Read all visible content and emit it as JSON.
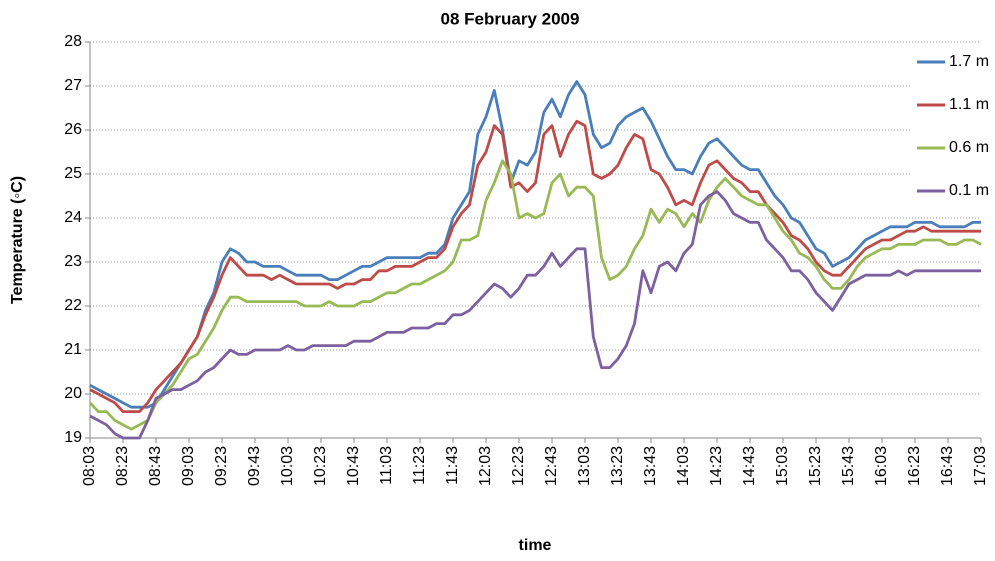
{
  "chart_data": {
    "type": "line",
    "title": "08 February 2009",
    "x_label": "time",
    "y_label": "Temperature (◦C)",
    "categories": [
      "08:03",
      null,
      null,
      null,
      "08:23",
      null,
      null,
      null,
      "08:43",
      null,
      null,
      null,
      "09:03",
      null,
      null,
      null,
      "09:23",
      null,
      null,
      null,
      "09:43",
      null,
      null,
      null,
      "10:03",
      null,
      null,
      null,
      "10:23",
      null,
      null,
      null,
      "10:43",
      null,
      null,
      null,
      "11:03",
      null,
      null,
      null,
      "11:23",
      null,
      null,
      null,
      "11:43",
      null,
      null,
      null,
      "12:03",
      null,
      null,
      null,
      "12:23",
      null,
      null,
      null,
      "12:43",
      null,
      null,
      null,
      "13:03",
      null,
      null,
      null,
      "13:23",
      null,
      null,
      null,
      "13:43",
      null,
      null,
      null,
      "14:03",
      null,
      null,
      null,
      "14:23",
      null,
      null,
      null,
      "14:43",
      null,
      null,
      null,
      "15:03",
      null,
      null,
      null,
      "15:23",
      null,
      null,
      null,
      "15:43",
      null,
      null,
      null,
      "16:03",
      null,
      null,
      null,
      "16:23",
      null,
      null,
      null,
      "16:43",
      null,
      null,
      null,
      "17:03"
    ],
    "series": [
      {
        "name": "1.7 m",
        "color": "#4a7ebb",
        "values": [
          20.2,
          20.1,
          20.0,
          19.9,
          19.8,
          19.7,
          19.7,
          19.7,
          19.8,
          20.1,
          20.4,
          20.7,
          21.0,
          21.3,
          21.9,
          22.3,
          23.0,
          23.3,
          23.2,
          23.0,
          23.0,
          22.9,
          22.9,
          22.9,
          22.8,
          22.7,
          22.7,
          22.7,
          22.7,
          22.6,
          22.6,
          22.7,
          22.8,
          22.9,
          22.9,
          23.0,
          23.1,
          23.1,
          23.1,
          23.1,
          23.1,
          23.2,
          23.2,
          23.4,
          24.0,
          24.3,
          24.6,
          25.9,
          26.3,
          26.9,
          26.0,
          24.8,
          25.3,
          25.2,
          25.5,
          26.4,
          26.7,
          26.3,
          26.8,
          27.1,
          26.8,
          25.9,
          25.6,
          25.7,
          26.1,
          26.3,
          26.4,
          26.5,
          26.2,
          25.8,
          25.4,
          25.1,
          25.1,
          25.0,
          25.4,
          25.7,
          25.8,
          25.6,
          25.4,
          25.2,
          25.1,
          25.1,
          24.8,
          24.5,
          24.3,
          24.0,
          23.9,
          23.6,
          23.3,
          23.2,
          22.9,
          23.0,
          23.1,
          23.3,
          23.5,
          23.6,
          23.7,
          23.8,
          23.8,
          23.8,
          23.9,
          23.9,
          23.9,
          23.8,
          23.8,
          23.8,
          23.8,
          23.9,
          23.9
        ]
      },
      {
        "name": "1.1 m",
        "color": "#be4b48",
        "values": [
          20.1,
          20.0,
          19.9,
          19.8,
          19.6,
          19.6,
          19.6,
          19.8,
          20.1,
          20.3,
          20.5,
          20.7,
          21.0,
          21.3,
          21.8,
          22.2,
          22.7,
          23.1,
          22.9,
          22.7,
          22.7,
          22.7,
          22.6,
          22.7,
          22.6,
          22.5,
          22.5,
          22.5,
          22.5,
          22.5,
          22.4,
          22.5,
          22.5,
          22.6,
          22.6,
          22.8,
          22.8,
          22.9,
          22.9,
          22.9,
          23.0,
          23.1,
          23.1,
          23.3,
          23.8,
          24.1,
          24.3,
          25.2,
          25.5,
          26.1,
          25.9,
          24.7,
          24.8,
          24.6,
          24.8,
          25.9,
          26.1,
          25.4,
          25.9,
          26.2,
          26.1,
          25.0,
          24.9,
          25.0,
          25.2,
          25.6,
          25.9,
          25.8,
          25.1,
          25.0,
          24.7,
          24.3,
          24.4,
          24.3,
          24.8,
          25.2,
          25.3,
          25.1,
          24.9,
          24.8,
          24.6,
          24.6,
          24.3,
          24.1,
          23.9,
          23.6,
          23.5,
          23.3,
          23.0,
          22.8,
          22.7,
          22.7,
          22.9,
          23.1,
          23.3,
          23.4,
          23.5,
          23.5,
          23.6,
          23.7,
          23.7,
          23.8,
          23.7,
          23.7,
          23.7,
          23.7,
          23.7,
          23.7,
          23.7
        ]
      },
      {
        "name": "0.6 m",
        "color": "#98b954",
        "values": [
          19.8,
          19.6,
          19.6,
          19.4,
          19.3,
          19.2,
          19.3,
          19.4,
          19.8,
          20.0,
          20.2,
          20.5,
          20.8,
          20.9,
          21.2,
          21.5,
          21.9,
          22.2,
          22.2,
          22.1,
          22.1,
          22.1,
          22.1,
          22.1,
          22.1,
          22.1,
          22.0,
          22.0,
          22.0,
          22.1,
          22.0,
          22.0,
          22.0,
          22.1,
          22.1,
          22.2,
          22.3,
          22.3,
          22.4,
          22.5,
          22.5,
          22.6,
          22.7,
          22.8,
          23.0,
          23.5,
          23.5,
          23.6,
          24.4,
          24.8,
          25.3,
          25.0,
          24.0,
          24.1,
          24.0,
          24.1,
          24.8,
          25.0,
          24.5,
          24.7,
          24.7,
          24.5,
          23.1,
          22.6,
          22.7,
          22.9,
          23.3,
          23.6,
          24.2,
          23.9,
          24.2,
          24.1,
          23.8,
          24.1,
          23.9,
          24.4,
          24.7,
          24.9,
          24.7,
          24.5,
          24.4,
          24.3,
          24.3,
          24.0,
          23.7,
          23.5,
          23.2,
          23.1,
          22.9,
          22.6,
          22.4,
          22.4,
          22.6,
          22.9,
          23.1,
          23.2,
          23.3,
          23.3,
          23.4,
          23.4,
          23.4,
          23.5,
          23.5,
          23.5,
          23.4,
          23.4,
          23.5,
          23.5,
          23.4
        ]
      },
      {
        "name": "0.1 m",
        "color": "#7d60a0",
        "values": [
          19.5,
          19.4,
          19.3,
          19.1,
          19.0,
          19.0,
          19.0,
          19.4,
          19.9,
          20.0,
          20.1,
          20.1,
          20.2,
          20.3,
          20.5,
          20.6,
          20.8,
          21.0,
          20.9,
          20.9,
          21.0,
          21.0,
          21.0,
          21.0,
          21.1,
          21.0,
          21.0,
          21.1,
          21.1,
          21.1,
          21.1,
          21.1,
          21.2,
          21.2,
          21.2,
          21.3,
          21.4,
          21.4,
          21.4,
          21.5,
          21.5,
          21.5,
          21.6,
          21.6,
          21.8,
          21.8,
          21.9,
          22.1,
          22.3,
          22.5,
          22.4,
          22.2,
          22.4,
          22.7,
          22.7,
          22.9,
          23.2,
          22.9,
          23.1,
          23.3,
          23.3,
          21.3,
          20.6,
          20.6,
          20.8,
          21.1,
          21.6,
          22.8,
          22.3,
          22.9,
          23.0,
          22.8,
          23.2,
          23.4,
          24.3,
          24.5,
          24.6,
          24.4,
          24.1,
          24.0,
          23.9,
          23.9,
          23.5,
          23.3,
          23.1,
          22.8,
          22.8,
          22.6,
          22.3,
          22.1,
          21.9,
          22.2,
          22.5,
          22.6,
          22.7,
          22.7,
          22.7,
          22.7,
          22.8,
          22.7,
          22.8,
          22.8,
          22.8,
          22.8,
          22.8,
          22.8,
          22.8,
          22.8,
          22.8
        ]
      }
    ],
    "ylim": [
      19,
      28
    ],
    "yticks": [
      19,
      20,
      21,
      22,
      23,
      24,
      25,
      26,
      27,
      28
    ],
    "grid": true
  }
}
